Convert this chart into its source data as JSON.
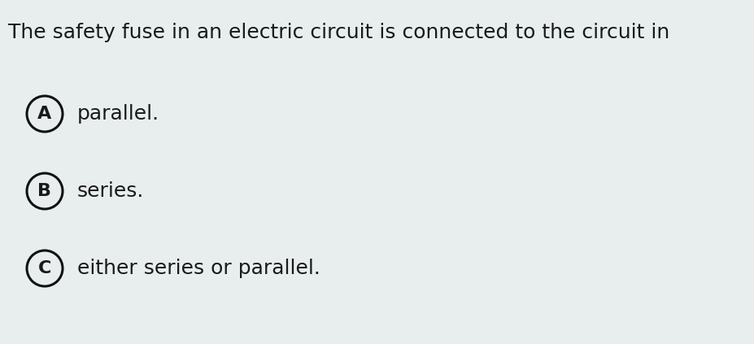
{
  "question": "The safety fuse in an electric circuit is connected to the circuit in",
  "options": [
    {
      "label": "A",
      "text": "parallel."
    },
    {
      "label": "B",
      "text": "series."
    },
    {
      "label": "C",
      "text": "either series or parallel."
    }
  ],
  "bg_color": "#e8eeee",
  "text_color": "#1a1a1a",
  "circle_edge_color": "#111111",
  "circle_fill_color": "#e8eeee",
  "question_fontsize": 18,
  "option_fontsize": 18,
  "label_fontsize": 16,
  "fig_width": 9.28,
  "fig_height": 4.23,
  "dpi": 100
}
